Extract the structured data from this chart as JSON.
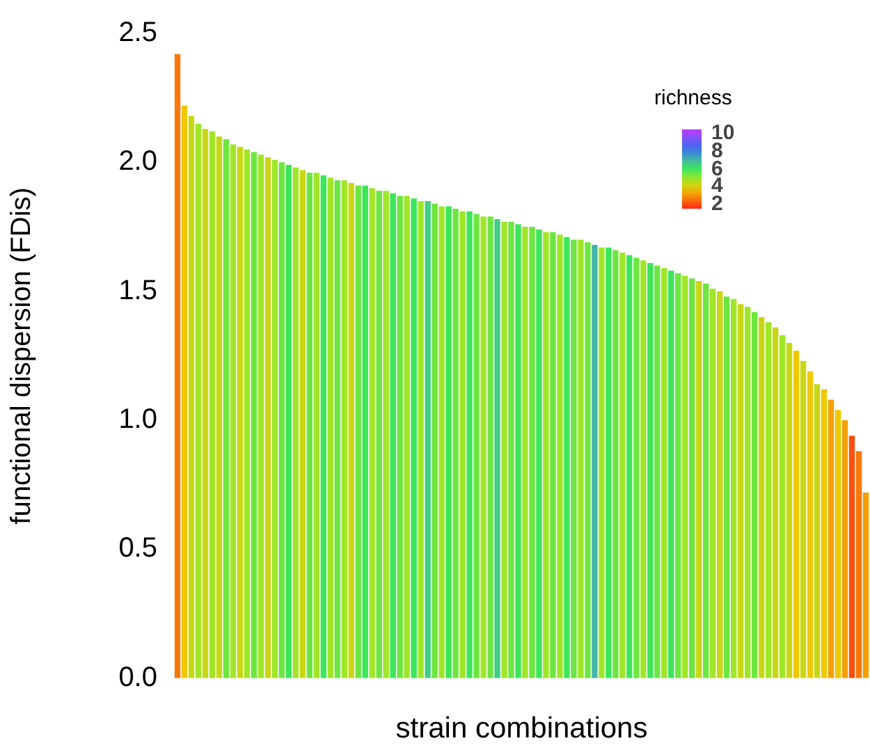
{
  "chart_data": {
    "type": "bar",
    "xlabel": "strain combinations",
    "ylabel": "functional dispersion (FDis)",
    "legend_title": "richness",
    "annotations": [
      "10",
      "8",
      "6",
      "4",
      "2"
    ],
    "categories": [
      null,
      null,
      null,
      null,
      null,
      null,
      null,
      null,
      null,
      null,
      null,
      null,
      null,
      null,
      null,
      null,
      null,
      null,
      null,
      null,
      null,
      null,
      null,
      null,
      null,
      null,
      null,
      null,
      null,
      null,
      null,
      null,
      null,
      null,
      null,
      null,
      null,
      null,
      null,
      null,
      null,
      null,
      null,
      null,
      null,
      null,
      null,
      null,
      null,
      null,
      null,
      null,
      null,
      null,
      null,
      null,
      null,
      null,
      null,
      null,
      null,
      null,
      null,
      null,
      null,
      null,
      null,
      null,
      null,
      null,
      null,
      null,
      null,
      null,
      null,
      null,
      null,
      null,
      null,
      null,
      null,
      null,
      null,
      null,
      null,
      null,
      null,
      null,
      null,
      null,
      null,
      null,
      null,
      null,
      null,
      null,
      null,
      null,
      null,
      null
    ],
    "values": [
      2.42,
      2.22,
      2.18,
      2.15,
      2.13,
      2.12,
      2.1,
      2.09,
      2.07,
      2.06,
      2.05,
      2.04,
      2.03,
      2.02,
      2.01,
      2.0,
      1.99,
      1.98,
      1.97,
      1.96,
      1.96,
      1.95,
      1.94,
      1.93,
      1.93,
      1.92,
      1.91,
      1.91,
      1.9,
      1.89,
      1.89,
      1.88,
      1.87,
      1.87,
      1.86,
      1.85,
      1.85,
      1.84,
      1.83,
      1.83,
      1.82,
      1.81,
      1.81,
      1.8,
      1.79,
      1.79,
      1.78,
      1.77,
      1.77,
      1.76,
      1.75,
      1.75,
      1.74,
      1.73,
      1.73,
      1.72,
      1.71,
      1.7,
      1.7,
      1.69,
      1.68,
      1.67,
      1.67,
      1.66,
      1.65,
      1.64,
      1.63,
      1.62,
      1.61,
      1.6,
      1.59,
      1.58,
      1.57,
      1.56,
      1.55,
      1.54,
      1.53,
      1.51,
      1.5,
      1.48,
      1.47,
      1.45,
      1.44,
      1.42,
      1.4,
      1.38,
      1.36,
      1.33,
      1.3,
      1.27,
      1.23,
      1.19,
      1.14,
      1.12,
      1.08,
      1.04,
      1.0,
      0.94,
      0.88,
      0.72
    ],
    "colors": [
      "#f8780a",
      "#f0c800",
      "#c8d714",
      "#a0e628",
      "#c8d714",
      "#a0e628",
      "#c8d714",
      "#6ee641",
      "#a0e628",
      "#c8d714",
      "#a0e628",
      "#6ee641",
      "#a0e628",
      "#c8d714",
      "#a0e628",
      "#6ee641",
      "#3ce65a",
      "#a0e628",
      "#c8d714",
      "#6ee641",
      "#a0e628",
      "#3ce65a",
      "#a0e628",
      "#6ee641",
      "#a0e628",
      "#c8d714",
      "#6ee641",
      "#3ce65a",
      "#a0e628",
      "#6ee641",
      "#a0e628",
      "#3ce65a",
      "#6ee641",
      "#a0e628",
      "#3ce65a",
      "#a0e628",
      "#41cd82",
      "#6ee641",
      "#a0e628",
      "#3ce65a",
      "#6ee641",
      "#a0e628",
      "#3ce65a",
      "#6ee641",
      "#a0e628",
      "#6ee641",
      "#41cd82",
      "#a0e628",
      "#6ee641",
      "#3ce65a",
      "#a0e628",
      "#6ee641",
      "#3ce65a",
      "#a0e628",
      "#6ee641",
      "#a0e628",
      "#3ce65a",
      "#6ee641",
      "#a0e628",
      "#6ee641",
      "#46b4aa",
      "#a0e628",
      "#3ce65a",
      "#6ee641",
      "#a0e628",
      "#3ce65a",
      "#6ee641",
      "#a0e628",
      "#3ce65a",
      "#6ee641",
      "#a0e628",
      "#3ce65a",
      "#6ee641",
      "#a0e628",
      "#6ee641",
      "#c8d714",
      "#6ee641",
      "#a0e628",
      "#c8d714",
      "#6ee641",
      "#a0e628",
      "#c8d714",
      "#a0e628",
      "#6ee641",
      "#c8d714",
      "#a0e628",
      "#c8d714",
      "#a0e628",
      "#c8d714",
      "#f0c800",
      "#c8d714",
      "#f0c800",
      "#c8d714",
      "#f0c800",
      "#f4a005",
      "#f0c800",
      "#f4a005",
      "#fb500f",
      "#f8780a",
      "#f4a005"
    ],
    "ylim": [
      0,
      2.5
    ],
    "yticks": [
      {
        "value": 0,
        "label": "0.0"
      },
      {
        "value": 0.5,
        "label": "0.5"
      },
      {
        "value": 1,
        "label": "1.0"
      },
      {
        "value": 1.5,
        "label": "1.5"
      },
      {
        "value": 2,
        "label": "2.0"
      },
      {
        "value": 2.5,
        "label": "2.5"
      }
    ],
    "grid": false,
    "legend": false
  }
}
